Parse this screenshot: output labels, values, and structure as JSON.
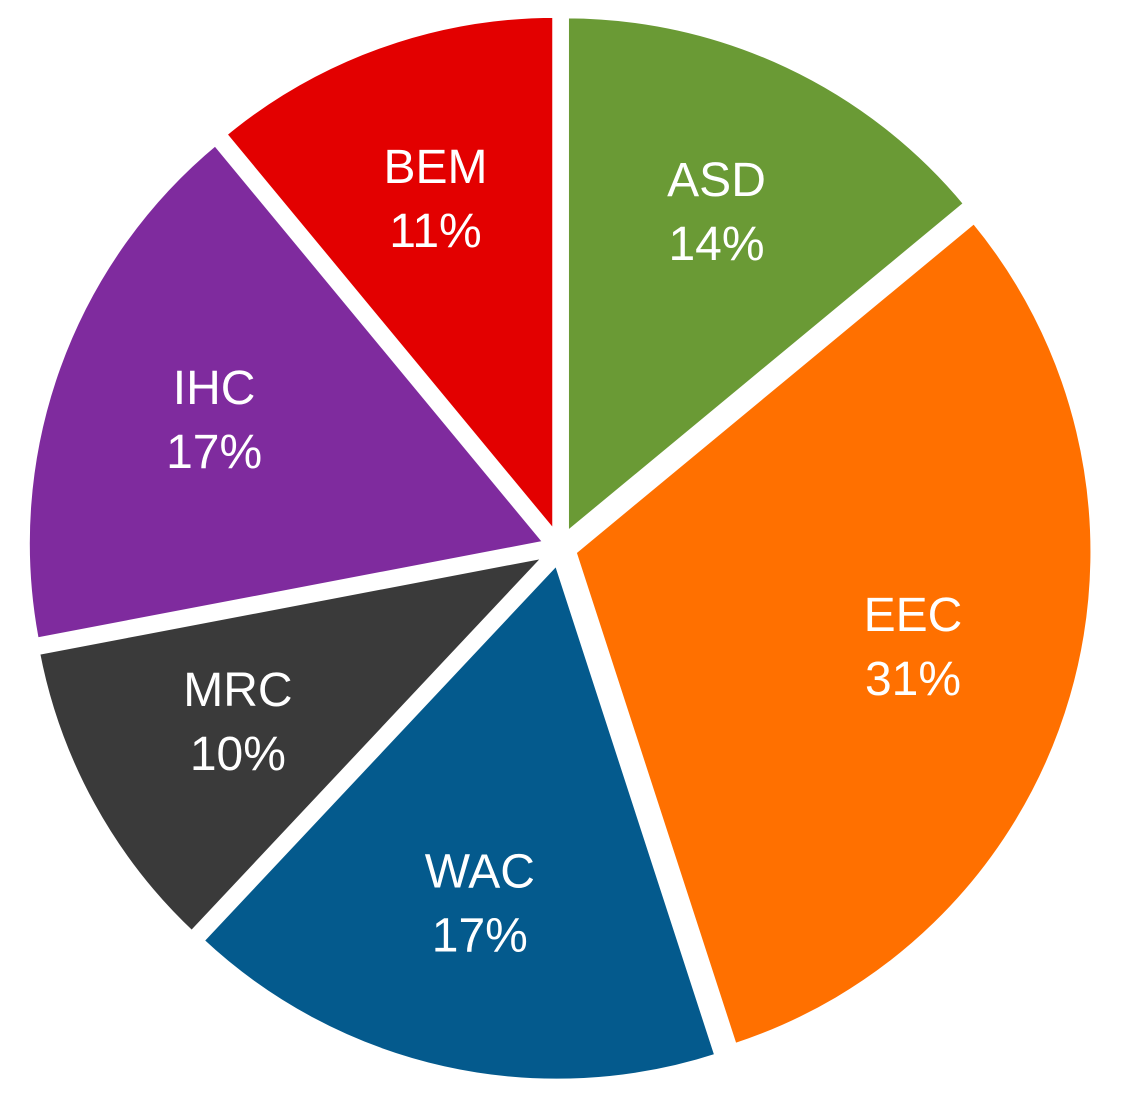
{
  "chart_data": {
    "type": "pie",
    "categories": [
      "ASD",
      "EEC",
      "WAC",
      "MRC",
      "IHC",
      "BEM"
    ],
    "values": [
      14,
      31,
      17,
      10,
      17,
      11
    ],
    "value_labels": [
      "14%",
      "31%",
      "17%",
      "10%",
      "17%",
      "11%"
    ],
    "colors": [
      "#6a9a35",
      "#ff7000",
      "#045a8d",
      "#3a3a3a",
      "#7f2b9e",
      "#e30000"
    ]
  }
}
